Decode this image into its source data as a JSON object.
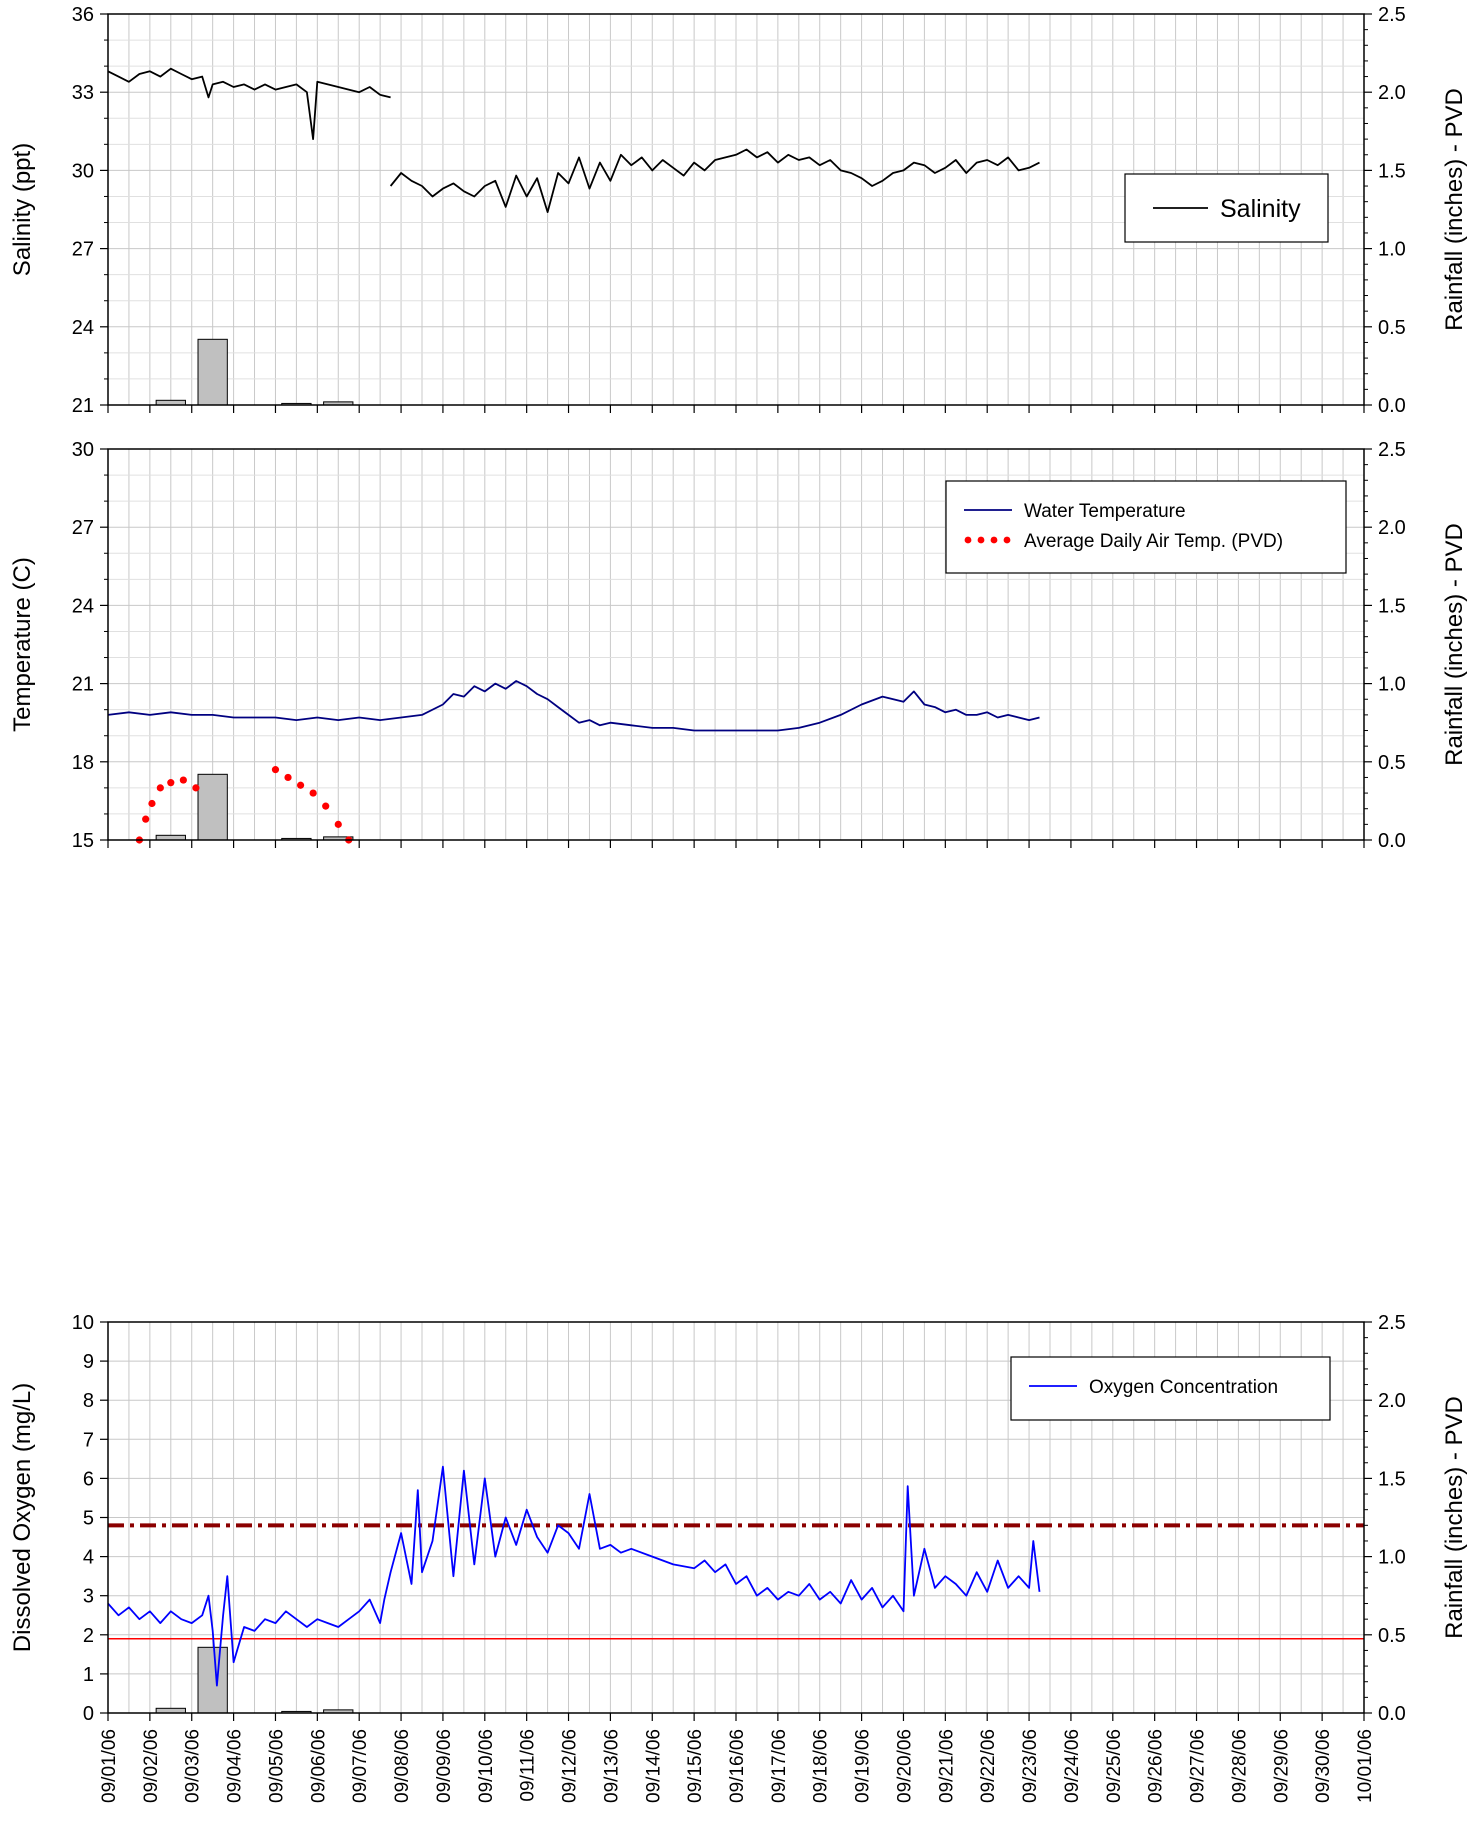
{
  "chart_data": [
    {
      "type": "line",
      "panel": "salinity",
      "title": "",
      "xlim": [
        "09/01/06",
        "10/01/06"
      ],
      "ylabel": "Salinity (ppt)",
      "ylim": [
        21,
        36
      ],
      "yticks": [
        "21",
        "24",
        "27",
        "30",
        "33",
        "36"
      ],
      "y2label": "Rainfall (inches) - PVD",
      "y2lim": [
        0,
        2.5
      ],
      "y2ticks": [
        "0.0",
        "0.5",
        "1.0",
        "1.5",
        "2.0",
        "2.5"
      ],
      "grid": true,
      "legend_placement": "right",
      "series": [
        {
          "name": "Salinity",
          "color": "#000000",
          "style": "solid",
          "points_x": [
            0.0,
            0.25,
            0.5,
            0.75,
            1.0,
            1.25,
            1.5,
            1.75,
            2.0,
            2.25,
            2.4,
            2.5,
            2.75,
            3.0,
            3.25,
            3.5,
            3.75,
            4.0,
            4.25,
            4.5,
            4.75,
            4.9,
            5.0,
            5.25,
            5.5,
            5.75,
            6.0,
            6.25,
            6.5,
            6.75,
            null,
            6.75,
            7.0,
            7.25,
            7.5,
            7.75,
            8.0,
            8.25,
            8.5,
            8.75,
            9.0,
            9.25,
            9.5,
            9.75,
            10.0,
            10.25,
            10.5,
            10.75,
            11.0,
            11.25,
            11.5,
            11.75,
            12.0,
            12.25,
            12.5,
            12.75,
            13.0,
            13.25,
            13.5,
            13.75,
            14.0,
            14.25,
            14.5,
            14.75,
            15.0,
            15.25,
            15.5,
            15.75,
            16.0,
            16.25,
            16.5,
            16.75,
            17.0,
            17.25,
            17.5,
            17.75,
            18.0,
            18.25,
            18.5,
            18.75,
            19.0,
            19.25,
            19.5,
            19.75,
            20.0,
            20.25,
            20.5,
            20.75,
            21.0,
            21.25,
            21.5,
            21.75,
            22.0,
            22.25
          ],
          "values": [
            33.8,
            33.6,
            33.4,
            33.7,
            33.8,
            33.6,
            33.9,
            33.7,
            33.5,
            33.6,
            32.8,
            33.3,
            33.4,
            33.2,
            33.3,
            33.1,
            33.3,
            33.1,
            33.2,
            33.3,
            33.0,
            31.2,
            33.4,
            33.3,
            33.2,
            33.1,
            33.0,
            33.2,
            32.9,
            32.8,
            null,
            29.4,
            29.9,
            29.6,
            29.4,
            29.0,
            29.3,
            29.5,
            29.2,
            29.0,
            29.4,
            29.6,
            28.6,
            29.8,
            29.0,
            29.7,
            28.4,
            29.9,
            29.5,
            30.5,
            29.3,
            30.3,
            29.6,
            30.6,
            30.2,
            30.5,
            30.0,
            30.4,
            30.1,
            29.8,
            30.3,
            30.0,
            30.4,
            30.5,
            30.6,
            30.8,
            30.5,
            30.7,
            30.3,
            30.6,
            30.4,
            30.5,
            30.2,
            30.4,
            30.0,
            29.9,
            29.7,
            29.4,
            29.6,
            29.9,
            30.0,
            30.3,
            30.2,
            29.9,
            30.1,
            30.4,
            29.9,
            30.3,
            30.4,
            30.2,
            30.5,
            30.0,
            30.1,
            30.3,
            30.2
          ]
        }
      ],
      "rainfall_bars": {
        "color": "#c0c0c0",
        "dates": [
          "09/02/06",
          "09/03/06",
          "09/05/06",
          "09/06/06"
        ],
        "values": [
          0.03,
          0.42,
          0.01,
          0.02
        ]
      }
    },
    {
      "type": "line",
      "panel": "temperature",
      "title": "",
      "xlim": [
        "09/01/06",
        "10/01/06"
      ],
      "ylabel": "Temperature (C)",
      "ylim": [
        15,
        30
      ],
      "yticks": [
        "15",
        "18",
        "21",
        "24",
        "27",
        "30"
      ],
      "y2label": "Rainfall (inches) - PVD",
      "y2lim": [
        0,
        2.5
      ],
      "y2ticks": [
        "0.0",
        "0.5",
        "1.0",
        "1.5",
        "2.0",
        "2.5"
      ],
      "grid": true,
      "legend_placement": "top-right",
      "series": [
        {
          "name": "Water Temperature",
          "color": "#000080",
          "style": "solid",
          "points_x": [
            0.0,
            0.5,
            1.0,
            1.5,
            2.0,
            2.5,
            3.0,
            3.5,
            4.0,
            4.5,
            5.0,
            5.5,
            6.0,
            6.5,
            7.0,
            7.5,
            8.0,
            8.25,
            8.5,
            8.75,
            9.0,
            9.25,
            9.5,
            9.75,
            10.0,
            10.25,
            10.5,
            10.75,
            11.0,
            11.25,
            11.5,
            11.75,
            12.0,
            12.5,
            13.0,
            13.5,
            14.0,
            14.5,
            15.0,
            15.5,
            16.0,
            16.5,
            17.0,
            17.5,
            18.0,
            18.5,
            19.0,
            19.25,
            19.5,
            19.75,
            20.0,
            20.25,
            20.5,
            20.75,
            21.0,
            21.25,
            21.5,
            21.75,
            22.0,
            22.25
          ],
          "values": [
            19.8,
            19.9,
            19.8,
            19.9,
            19.8,
            19.8,
            19.7,
            19.7,
            19.7,
            19.6,
            19.7,
            19.6,
            19.7,
            19.6,
            19.7,
            19.8,
            20.2,
            20.6,
            20.5,
            20.9,
            20.7,
            21.0,
            20.8,
            21.1,
            20.9,
            20.6,
            20.4,
            20.1,
            19.8,
            19.5,
            19.6,
            19.4,
            19.5,
            19.4,
            19.3,
            19.3,
            19.2,
            19.2,
            19.2,
            19.2,
            19.2,
            19.3,
            19.5,
            19.8,
            20.2,
            20.5,
            20.3,
            20.7,
            20.2,
            20.1,
            19.9,
            20.0,
            19.8,
            19.8,
            19.9,
            19.7,
            19.8,
            19.7,
            19.6,
            19.7
          ]
        },
        {
          "name": "Average Daily Air Temp. (PVD)",
          "color": "#ff0000",
          "style": "dotted",
          "points_x": [
            0.75,
            0.9,
            1.05,
            1.25,
            1.5,
            1.8,
            2.1,
            4.0,
            4.3,
            4.6,
            4.9,
            5.2,
            5.5,
            5.75
          ],
          "values": [
            15.0,
            15.8,
            16.4,
            17.0,
            17.2,
            17.3,
            17.0,
            17.7,
            17.4,
            17.1,
            16.8,
            16.3,
            15.6,
            15.0
          ]
        }
      ],
      "rainfall_bars": {
        "color": "#c0c0c0",
        "dates": [
          "09/02/06",
          "09/03/06",
          "09/05/06",
          "09/06/06"
        ],
        "values": [
          0.03,
          0.42,
          0.01,
          0.02
        ]
      }
    },
    {
      "type": "line",
      "panel": "oxygen",
      "title": "",
      "xlim": [
        "09/01/06",
        "10/01/06"
      ],
      "ylabel": "Dissolved Oxygen (mg/L)",
      "ylim": [
        0,
        10
      ],
      "yticks": [
        "0",
        "1",
        "2",
        "3",
        "4",
        "5",
        "6",
        "7",
        "8",
        "9",
        "10"
      ],
      "y2label": "Rainfall (inches) - PVD",
      "y2lim": [
        0,
        2.5
      ],
      "y2ticks": [
        "0.0",
        "0.5",
        "1.0",
        "1.5",
        "2.0",
        "2.5"
      ],
      "grid": true,
      "legend_placement": "top-right",
      "series": [
        {
          "name": "Oxygen Concentration",
          "color": "#0000ff",
          "style": "solid",
          "points_x": [
            0.0,
            0.25,
            0.5,
            0.75,
            1.0,
            1.25,
            1.5,
            1.75,
            2.0,
            2.25,
            2.4,
            2.5,
            2.6,
            2.75,
            2.85,
            3.0,
            3.25,
            3.5,
            3.75,
            4.0,
            4.25,
            4.5,
            4.75,
            5.0,
            5.25,
            5.5,
            5.75,
            6.0,
            6.25,
            6.5,
            6.6,
            6.75,
            7.0,
            7.25,
            7.4,
            7.5,
            7.75,
            8.0,
            8.25,
            8.5,
            8.75,
            9.0,
            9.25,
            9.5,
            9.75,
            10.0,
            10.25,
            10.5,
            10.75,
            11.0,
            11.25,
            11.5,
            11.75,
            12.0,
            12.25,
            12.5,
            13.0,
            13.5,
            14.0,
            14.25,
            14.5,
            14.75,
            15.0,
            15.25,
            15.5,
            15.75,
            16.0,
            16.25,
            16.5,
            16.75,
            17.0,
            17.25,
            17.5,
            17.75,
            18.0,
            18.25,
            18.5,
            18.75,
            19.0,
            19.1,
            19.25,
            19.5,
            19.75,
            20.0,
            20.25,
            20.5,
            20.75,
            21.0,
            21.25,
            21.5,
            21.75,
            22.0,
            22.1,
            22.25
          ],
          "values": [
            2.8,
            2.5,
            2.7,
            2.4,
            2.6,
            2.3,
            2.6,
            2.4,
            2.3,
            2.5,
            3.0,
            2.1,
            0.7,
            2.5,
            3.5,
            1.3,
            2.2,
            2.1,
            2.4,
            2.3,
            2.6,
            2.4,
            2.2,
            2.4,
            2.3,
            2.2,
            2.4,
            2.6,
            2.9,
            2.3,
            2.9,
            3.6,
            4.6,
            3.3,
            5.7,
            3.6,
            4.4,
            6.3,
            3.5,
            6.2,
            3.8,
            6.0,
            4.0,
            5.0,
            4.3,
            5.2,
            4.5,
            4.1,
            4.8,
            4.6,
            4.2,
            5.6,
            4.2,
            4.3,
            4.1,
            4.2,
            4.0,
            3.8,
            3.7,
            3.9,
            3.6,
            3.8,
            3.3,
            3.5,
            3.0,
            3.2,
            2.9,
            3.1,
            3.0,
            3.3,
            2.9,
            3.1,
            2.8,
            3.4,
            2.9,
            3.2,
            2.7,
            3.0,
            2.6,
            5.8,
            3.0,
            4.2,
            3.2,
            3.5,
            3.3,
            3.0,
            3.6,
            3.1,
            3.9,
            3.2,
            3.5,
            3.2,
            4.4,
            3.1
          ]
        }
      ],
      "reference_lines": [
        {
          "y": 4.8,
          "color": "#8b0000",
          "style": "dash-dot"
        },
        {
          "y": 1.9,
          "color": "#ff0000",
          "style": "solid"
        }
      ],
      "rainfall_bars": {
        "color": "#c0c0c0",
        "dates": [
          "09/02/06",
          "09/03/06",
          "09/05/06",
          "09/06/06"
        ],
        "values": [
          0.03,
          0.42,
          0.01,
          0.02
        ]
      }
    }
  ],
  "x_tick_labels": [
    "09/01/06",
    "09/02/06",
    "09/03/06",
    "09/04/06",
    "09/05/06",
    "09/06/06",
    "09/07/06",
    "09/08/06",
    "09/09/06",
    "09/10/06",
    "09/11/06",
    "09/12/06",
    "09/13/06",
    "09/14/06",
    "09/15/06",
    "09/16/06",
    "09/17/06",
    "09/18/06",
    "09/19/06",
    "09/20/06",
    "09/21/06",
    "09/22/06",
    "09/23/06",
    "09/24/06",
    "09/25/06",
    "09/26/06",
    "09/27/06",
    "09/28/06",
    "09/29/06",
    "09/30/06",
    "10/01/06"
  ]
}
